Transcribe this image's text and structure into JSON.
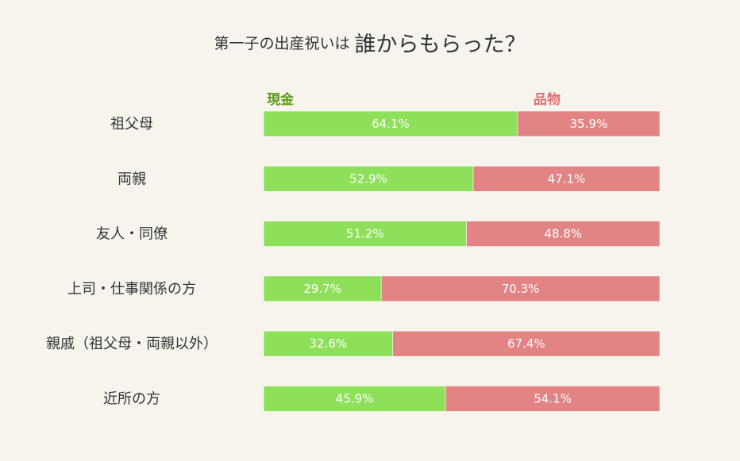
{
  "title": {
    "lead": "第一子の出産祝いは",
    "main": "誰からもらった？"
  },
  "colors": {
    "cash": "#8ee05a",
    "gift": "#e28484",
    "cash_label": "#5c9a18",
    "gift_label": "#e07070",
    "value_label": "#ffffff",
    "category_label": "#333333"
  },
  "chart_data": {
    "type": "bar",
    "orientation": "horizontal",
    "stacked": true,
    "percent": true,
    "categories": [
      "祖父母",
      "両親",
      "友人・同僚",
      "上司・仕事関係の方",
      "親戚（祖父母・両親以外）",
      "近所の方"
    ],
    "series": [
      {
        "name": "現金",
        "values": [
          64.1,
          52.9,
          51.2,
          29.7,
          32.6,
          45.9
        ],
        "labels": [
          "64.1%",
          "52.9%",
          "51.2%",
          "29.7%",
          "32.6%",
          "45.9%"
        ]
      },
      {
        "name": "品物",
        "values": [
          35.9,
          47.1,
          48.8,
          70.3,
          67.4,
          54.1
        ],
        "labels": [
          "35.9%",
          "47.1%",
          "48.8%",
          "70.3%",
          "67.4%",
          "54.1%"
        ]
      }
    ],
    "xlim": [
      0,
      100
    ],
    "grid": false,
    "legend": "top"
  }
}
